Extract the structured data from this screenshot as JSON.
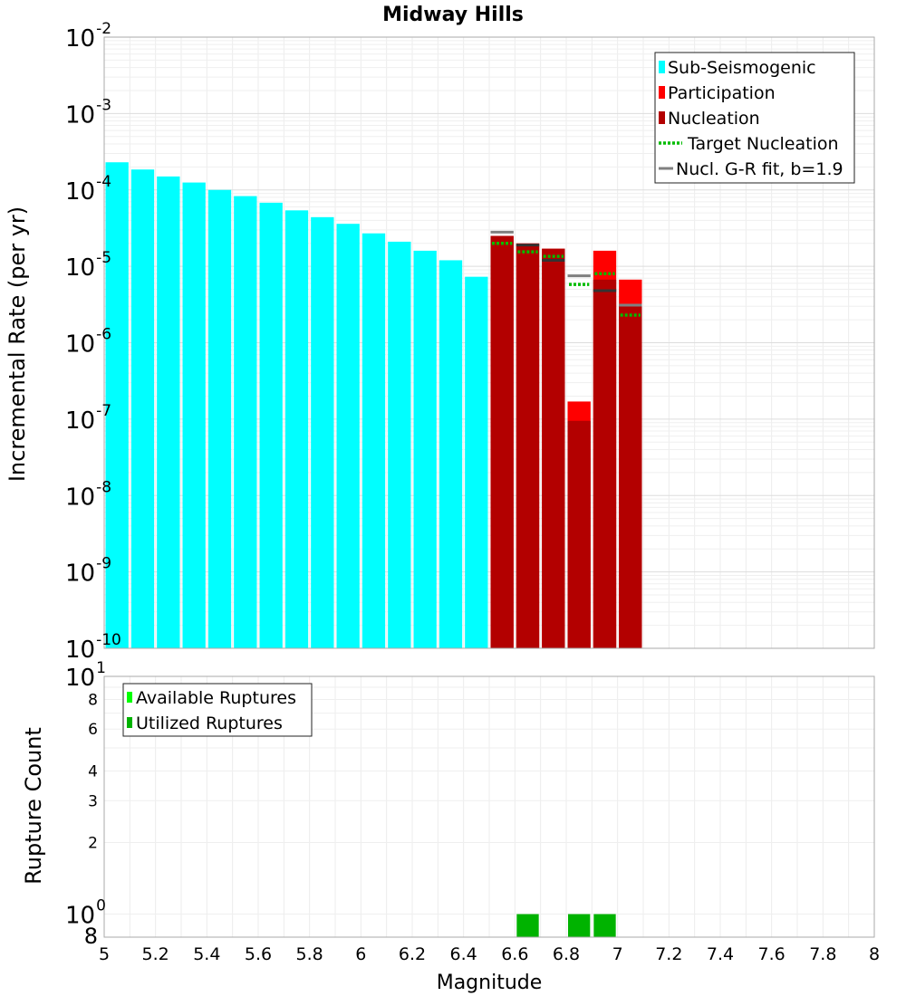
{
  "chart_data": [
    {
      "type": "bar",
      "panel": "top",
      "title": "Midway Hills",
      "xlabel": "",
      "ylabel": "Incremental Rate (per yr)",
      "xlim": [
        5,
        8
      ],
      "ylim_log10": [
        -10,
        -2
      ],
      "yscale": "log",
      "y_tick_exponents": [
        "-10",
        "-9",
        "-8",
        "-7",
        "-6",
        "-5",
        "-4",
        "-3",
        "-2"
      ],
      "bin_width": 0.1,
      "legend": {
        "position": "top-right",
        "entries": [
          {
            "label": "Sub-Seismogenic",
            "color": "#00ffff",
            "style": "box"
          },
          {
            "label": "Participation",
            "color": "#ff0000",
            "style": "box"
          },
          {
            "label": "Nucleation",
            "color": "#b30000",
            "style": "box"
          },
          {
            "label": "Target Nucleation",
            "color": "#00bb00",
            "style": "dotted"
          },
          {
            "label": "Nucl. G-R fit, b=1.9",
            "color": "#808080",
            "style": "line"
          }
        ]
      },
      "series": [
        {
          "name": "Sub-Seismogenic",
          "color": "#00ffff",
          "x": [
            5.05,
            5.15,
            5.25,
            5.35,
            5.45,
            5.55,
            5.65,
            5.75,
            5.85,
            5.95,
            6.05,
            6.15,
            6.25,
            6.35,
            6.45
          ],
          "values": [
            0.00023,
            0.000185,
            0.00015,
            0.000125,
            0.0001,
            8.3e-05,
            6.8e-05,
            5.4e-05,
            4.4e-05,
            3.6e-05,
            2.7e-05,
            2.1e-05,
            1.6e-05,
            1.2e-05,
            7.3e-06
          ]
        },
        {
          "name": "Participation",
          "color": "#ff0000",
          "x": [
            6.55,
            6.65,
            6.75,
            6.85,
            6.95,
            7.05
          ],
          "values": [
            2.5e-05,
            2e-05,
            1.7e-05,
            1.7e-07,
            1.6e-05,
            6.7e-06
          ]
        },
        {
          "name": "Nucleation",
          "color": "#b30000",
          "x": [
            6.55,
            6.65,
            6.75,
            6.85,
            6.95,
            7.05
          ],
          "values": [
            2.5e-05,
            1.95e-05,
            1.7e-05,
            9.5e-08,
            6.7e-06,
            3e-06
          ]
        },
        {
          "name": "Target Nucleation",
          "color": "#00bb00",
          "x": [
            6.55,
            6.65,
            6.75,
            6.85,
            6.95,
            7.05
          ],
          "values": [
            2e-05,
            1.55e-05,
            1.35e-05,
            5.8e-06,
            8e-06,
            2.3e-06
          ]
        },
        {
          "name": "Nucl. G-R fit, b=1.9",
          "color": "#808080",
          "x": [
            6.55,
            6.65,
            6.75,
            6.85,
            6.95,
            7.05
          ],
          "values": [
            2.8e-05,
            1.9e-05,
            1.2e-05,
            7.5e-06,
            4.8e-06,
            3.1e-06
          ]
        }
      ]
    },
    {
      "type": "bar",
      "panel": "bottom",
      "title": "",
      "xlabel": "Magnitude",
      "ylabel": "Rupture Count",
      "xlim": [
        5,
        8
      ],
      "ylim": [
        0.8,
        10
      ],
      "yscale": "log",
      "x_ticks": [
        "5",
        "5.2",
        "5.4",
        "5.6",
        "5.8",
        "6",
        "6.2",
        "6.4",
        "6.6",
        "6.8",
        "7",
        "7.2",
        "7.4",
        "7.6",
        "7.8",
        "8"
      ],
      "y_tick_labels": [
        {
          "value": 1,
          "label": "10",
          "sup": "0"
        },
        {
          "value": 2,
          "label": "2",
          "sup": ""
        },
        {
          "value": 3,
          "label": "3",
          "sup": ""
        },
        {
          "value": 4,
          "label": "4",
          "sup": ""
        },
        {
          "value": 6,
          "label": "6",
          "sup": ""
        },
        {
          "value": 8,
          "label": "8",
          "sup": ""
        },
        {
          "value": 10,
          "label": "10",
          "sup": "1"
        }
      ],
      "y_extra_label": {
        "value": 0.8,
        "label": "8"
      },
      "legend": {
        "position": "top-left",
        "entries": [
          {
            "label": "Available Ruptures",
            "color": "#00ff00",
            "style": "box"
          },
          {
            "label": "Utilized Ruptures",
            "color": "#00b300",
            "style": "box"
          }
        ]
      },
      "series": [
        {
          "name": "Available Ruptures",
          "color": "#00ff00",
          "x": [
            6.65,
            6.85,
            6.95
          ],
          "values": [
            1,
            1,
            1
          ]
        },
        {
          "name": "Utilized Ruptures",
          "color": "#00b300",
          "x": [
            6.65,
            6.85,
            6.95
          ],
          "values": [
            1,
            1,
            1
          ]
        }
      ]
    }
  ]
}
